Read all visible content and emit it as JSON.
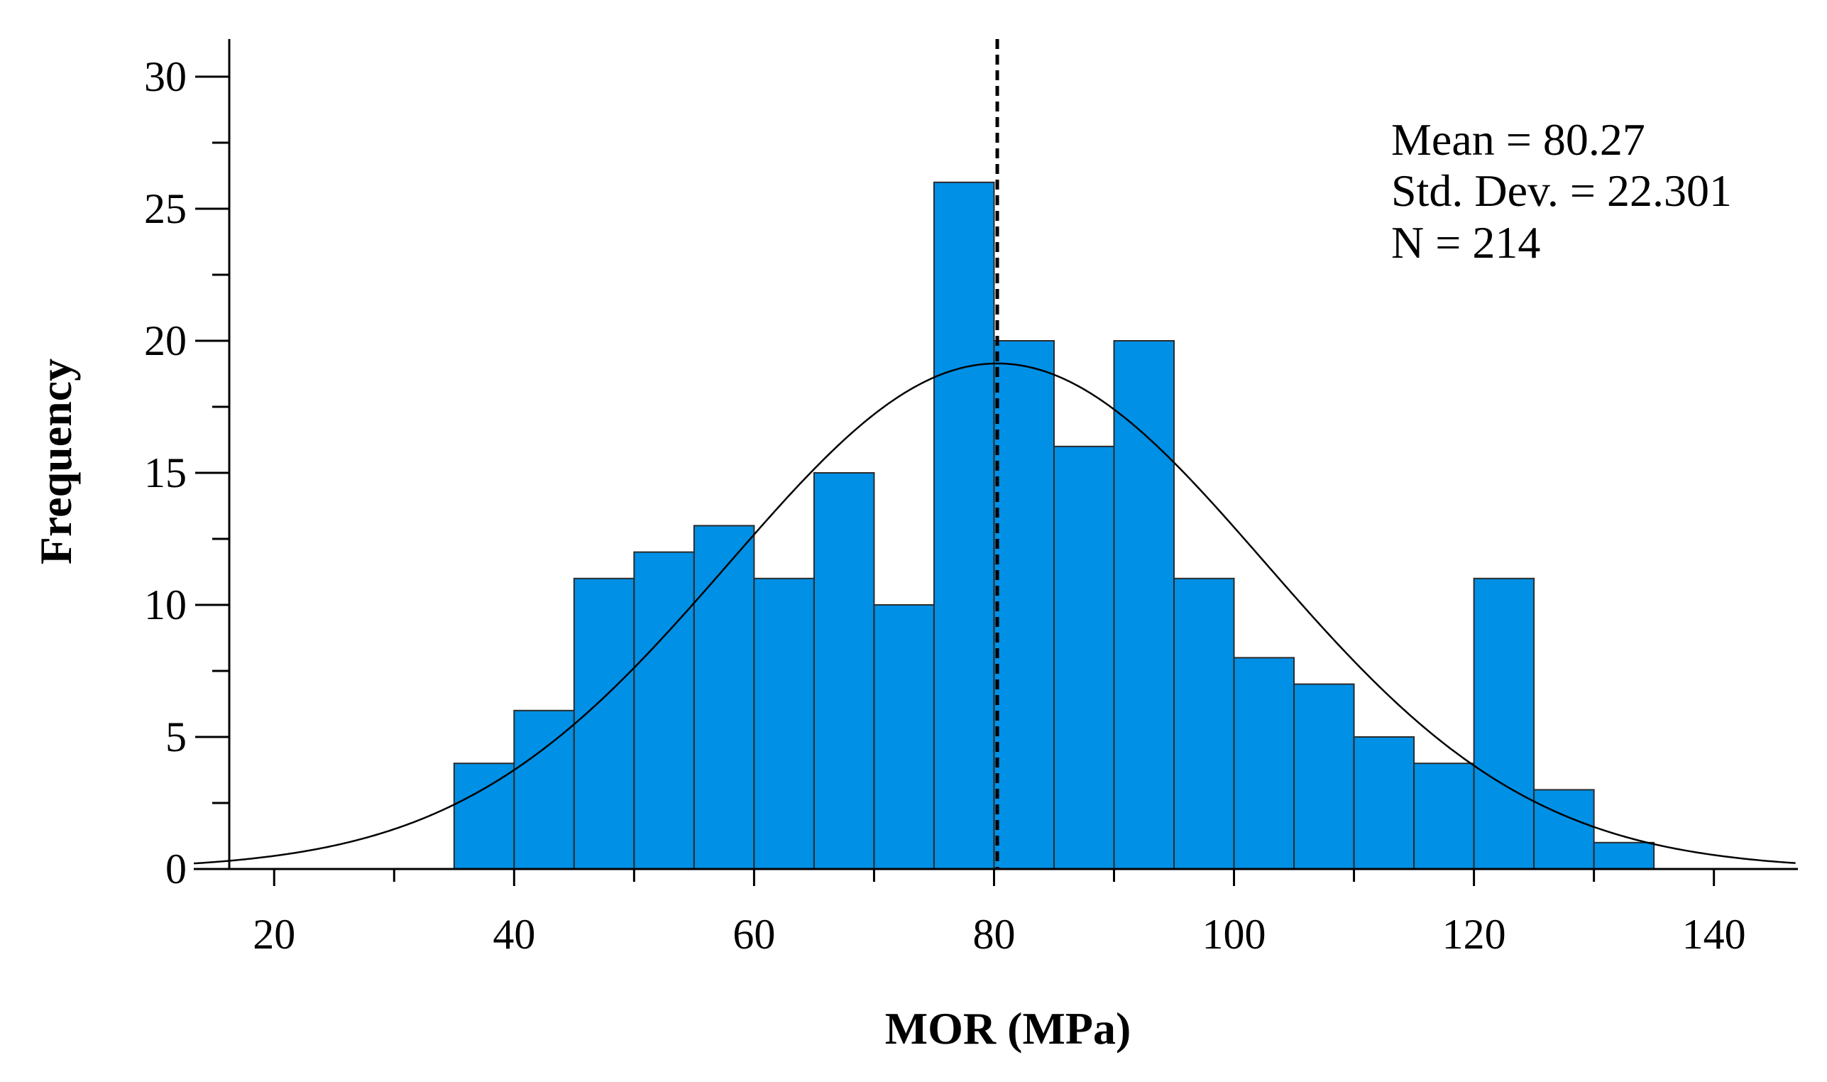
{
  "chart_data": {
    "type": "bar",
    "subtype": "histogram",
    "xlabel": "MOR (MPa)",
    "ylabel": "Frequency",
    "xlim": [
      13.3,
      147
    ],
    "ylim": [
      0,
      31.5
    ],
    "x_ticks": [
      20,
      40,
      60,
      80,
      100,
      120,
      140
    ],
    "x_minor_ticks": [
      30,
      50,
      70,
      90,
      110,
      130
    ],
    "y_ticks": [
      0,
      5,
      10,
      15,
      20,
      25,
      30
    ],
    "y_minor_ticks": [
      2.5,
      7.5,
      12.5,
      17.5,
      22.5,
      27.5
    ],
    "bins": [
      {
        "start": 35,
        "end": 40,
        "count": 4
      },
      {
        "start": 40,
        "end": 45,
        "count": 6
      },
      {
        "start": 45,
        "end": 50,
        "count": 11
      },
      {
        "start": 50,
        "end": 55,
        "count": 12
      },
      {
        "start": 55,
        "end": 60,
        "count": 13
      },
      {
        "start": 60,
        "end": 65,
        "count": 11
      },
      {
        "start": 65,
        "end": 70,
        "count": 15
      },
      {
        "start": 70,
        "end": 75,
        "count": 10
      },
      {
        "start": 75,
        "end": 80,
        "count": 26
      },
      {
        "start": 80,
        "end": 85,
        "count": 20
      },
      {
        "start": 85,
        "end": 90,
        "count": 16
      },
      {
        "start": 90,
        "end": 95,
        "count": 20
      },
      {
        "start": 95,
        "end": 100,
        "count": 11
      },
      {
        "start": 100,
        "end": 105,
        "count": 8
      },
      {
        "start": 105,
        "end": 110,
        "count": 7
      },
      {
        "start": 110,
        "end": 115,
        "count": 5
      },
      {
        "start": 115,
        "end": 120,
        "count": 4
      },
      {
        "start": 120,
        "end": 125,
        "count": 11
      },
      {
        "start": 125,
        "end": 130,
        "count": 3
      },
      {
        "start": 130,
        "end": 135,
        "count": 1
      }
    ],
    "normal_curve": {
      "mean": 80.27,
      "sd": 22.301,
      "n": 214,
      "bin_width": 5
    },
    "mean_line": 80.27,
    "stats_text": [
      "Mean = 80.27",
      "Std. Dev. = 22.301",
      "N = 214"
    ],
    "colors": {
      "bar_fill": "#0090e6",
      "bar_stroke": "#2b2b2b",
      "axis": "#000000",
      "curve": "#000000"
    }
  }
}
